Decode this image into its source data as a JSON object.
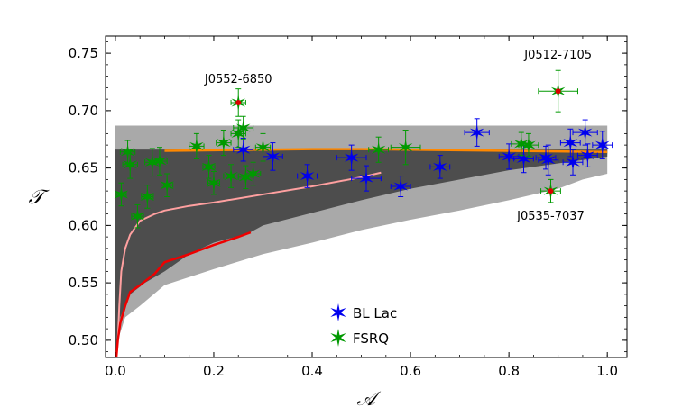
{
  "chart_data": {
    "type": "scatter",
    "title": "",
    "xlabel": "𝒜",
    "ylabel": "𝒯",
    "xlim": [
      -0.02,
      1.04
    ],
    "ylim": [
      0.485,
      0.765
    ],
    "x_ticks": [
      "0.0",
      "0.2",
      "0.4",
      "0.6",
      "0.8",
      "1.0"
    ],
    "x_tick_values": [
      0.0,
      0.2,
      0.4,
      0.6,
      0.8,
      1.0
    ],
    "y_ticks": [
      "0.50",
      "0.55",
      "0.60",
      "0.65",
      "0.70",
      "0.75"
    ],
    "y_tick_values": [
      0.5,
      0.55,
      0.6,
      0.65,
      0.7,
      0.75
    ],
    "grid": false,
    "legend_position": "bottom-center",
    "series": [
      {
        "name": "BL Lac",
        "color": "#0000ee",
        "marker": "star",
        "points": [
          {
            "x": 0.26,
            "y": 0.666,
            "xerr": 0.02,
            "yerr": 0.01
          },
          {
            "x": 0.32,
            "y": 0.66,
            "xerr": 0.02,
            "yerr": 0.012
          },
          {
            "x": 0.39,
            "y": 0.643,
            "xerr": 0.02,
            "yerr": 0.01
          },
          {
            "x": 0.48,
            "y": 0.659,
            "xerr": 0.03,
            "yerr": 0.011
          },
          {
            "x": 0.51,
            "y": 0.641,
            "xerr": 0.03,
            "yerr": 0.011
          },
          {
            "x": 0.58,
            "y": 0.634,
            "xerr": 0.02,
            "yerr": 0.009
          },
          {
            "x": 0.66,
            "y": 0.651,
            "xerr": 0.02,
            "yerr": 0.01
          },
          {
            "x": 0.735,
            "y": 0.681,
            "xerr": 0.025,
            "yerr": 0.012
          },
          {
            "x": 0.8,
            "y": 0.66,
            "xerr": 0.02,
            "yerr": 0.011
          },
          {
            "x": 0.83,
            "y": 0.658,
            "xerr": 0.02,
            "yerr": 0.012
          },
          {
            "x": 0.875,
            "y": 0.659,
            "xerr": 0.02,
            "yerr": 0.01
          },
          {
            "x": 0.88,
            "y": 0.657,
            "xerr": 0.02,
            "yerr": 0.013
          },
          {
            "x": 0.925,
            "y": 0.672,
            "xerr": 0.02,
            "yerr": 0.012
          },
          {
            "x": 0.93,
            "y": 0.655,
            "xerr": 0.02,
            "yerr": 0.011
          },
          {
            "x": 0.955,
            "y": 0.681,
            "xerr": 0.025,
            "yerr": 0.011
          },
          {
            "x": 0.96,
            "y": 0.661,
            "xerr": 0.02,
            "yerr": 0.01
          },
          {
            "x": 0.99,
            "y": 0.67,
            "xerr": 0.02,
            "yerr": 0.012
          }
        ]
      },
      {
        "name": "FSRQ",
        "color": "#009900",
        "marker": "star",
        "points": [
          {
            "x": 0.012,
            "y": 0.627,
            "xerr": 0.01,
            "yerr": 0.01
          },
          {
            "x": 0.025,
            "y": 0.664,
            "xerr": 0.015,
            "yerr": 0.01
          },
          {
            "x": 0.03,
            "y": 0.653,
            "xerr": 0.015,
            "yerr": 0.012
          },
          {
            "x": 0.045,
            "y": 0.608,
            "xerr": 0.012,
            "yerr": 0.01
          },
          {
            "x": 0.065,
            "y": 0.625,
            "xerr": 0.012,
            "yerr": 0.01
          },
          {
            "x": 0.075,
            "y": 0.655,
            "xerr": 0.015,
            "yerr": 0.012
          },
          {
            "x": 0.09,
            "y": 0.656,
            "xerr": 0.015,
            "yerr": 0.012
          },
          {
            "x": 0.105,
            "y": 0.635,
            "xerr": 0.012,
            "yerr": 0.01
          },
          {
            "x": 0.165,
            "y": 0.669,
            "xerr": 0.015,
            "yerr": 0.011
          },
          {
            "x": 0.19,
            "y": 0.651,
            "xerr": 0.012,
            "yerr": 0.01
          },
          {
            "x": 0.2,
            "y": 0.637,
            "xerr": 0.012,
            "yerr": 0.01
          },
          {
            "x": 0.22,
            "y": 0.672,
            "xerr": 0.015,
            "yerr": 0.011
          },
          {
            "x": 0.235,
            "y": 0.643,
            "xerr": 0.015,
            "yerr": 0.01
          },
          {
            "x": 0.25,
            "y": 0.68,
            "xerr": 0.015,
            "yerr": 0.012
          },
          {
            "x": 0.26,
            "y": 0.685,
            "xerr": 0.02,
            "yerr": 0.01
          },
          {
            "x": 0.265,
            "y": 0.642,
            "xerr": 0.015,
            "yerr": 0.01
          },
          {
            "x": 0.28,
            "y": 0.645,
            "xerr": 0.015,
            "yerr": 0.01
          },
          {
            "x": 0.3,
            "y": 0.668,
            "xerr": 0.015,
            "yerr": 0.012
          },
          {
            "x": 0.535,
            "y": 0.666,
            "xerr": 0.02,
            "yerr": 0.011
          },
          {
            "x": 0.59,
            "y": 0.668,
            "xerr": 0.03,
            "yerr": 0.015
          },
          {
            "x": 0.825,
            "y": 0.671,
            "xerr": 0.02,
            "yerr": 0.01
          },
          {
            "x": 0.84,
            "y": 0.67,
            "xerr": 0.02,
            "yerr": 0.01
          }
        ]
      }
    ],
    "special_points": [
      {
        "label": "J0552-6850",
        "x": 0.25,
        "y": 0.707,
        "xerr": 0.015,
        "yerr": 0.012
      },
      {
        "label": "J0512-7105",
        "x": 0.9,
        "y": 0.717,
        "xerr": 0.04,
        "yerr": 0.018
      },
      {
        "label": "J0535-7037",
        "x": 0.885,
        "y": 0.63,
        "xerr": 0.02,
        "yerr": 0.01
      }
    ],
    "special_marker_color": "#dd0000",
    "regions": {
      "light_band": {
        "color": "#a9a9a9",
        "y_top": 0.687,
        "lower_x": [
          0.0,
          0.005,
          0.02,
          0.05,
          0.1,
          0.2,
          0.3,
          0.4,
          0.5,
          0.6,
          0.7,
          0.8,
          0.9,
          0.95,
          1.0
        ],
        "lower_y": [
          0.485,
          0.5,
          0.52,
          0.53,
          0.548,
          0.562,
          0.575,
          0.585,
          0.596,
          0.605,
          0.613,
          0.622,
          0.632,
          0.64,
          0.645
        ]
      },
      "mid_band": {
        "color": "#808080",
        "y_top": 0.667,
        "lower_x": [
          0.0,
          0.002,
          0.01,
          0.03,
          0.06,
          0.1,
          0.2,
          0.3,
          0.4,
          0.5,
          0.6,
          0.7,
          0.8,
          0.9,
          0.95,
          1.0
        ],
        "lower_y": [
          0.485,
          0.525,
          0.55,
          0.568,
          0.578,
          0.585,
          0.598,
          0.608,
          0.617,
          0.626,
          0.635,
          0.643,
          0.65,
          0.657,
          0.66,
          0.662
        ]
      },
      "dark_band": {
        "color": "#4d4d4d",
        "y_top": 0.666,
        "lower_x": [
          0.0,
          0.01,
          0.03,
          0.06,
          0.1,
          0.15,
          0.2,
          0.27,
          0.3,
          0.4,
          0.5,
          0.6,
          0.7,
          0.8,
          0.9,
          0.95,
          1.0
        ],
        "lower_y": [
          0.485,
          0.52,
          0.54,
          0.55,
          0.56,
          0.575,
          0.585,
          0.593,
          0.6,
          0.611,
          0.622,
          0.632,
          0.64,
          0.648,
          0.654,
          0.657,
          0.66
        ]
      }
    },
    "curves": [
      {
        "color": "#ff8800",
        "width": 2.5,
        "x": [
          0.1,
          0.2,
          0.3,
          0.4,
          0.5,
          0.6,
          0.7,
          0.8,
          0.9,
          1.0
        ],
        "y": [
          0.665,
          0.6655,
          0.666,
          0.6665,
          0.6665,
          0.666,
          0.6655,
          0.665,
          0.6645,
          0.664
        ]
      },
      {
        "color": "#ffa0a0",
        "width": 2,
        "x": [
          0.005,
          0.008,
          0.012,
          0.02,
          0.03,
          0.05,
          0.08,
          0.1,
          0.15,
          0.2,
          0.3,
          0.4,
          0.5,
          0.54
        ],
        "y": [
          0.5,
          0.53,
          0.56,
          0.58,
          0.592,
          0.604,
          0.61,
          0.613,
          0.617,
          0.62,
          0.627,
          0.634,
          0.642,
          0.646
        ]
      },
      {
        "color": "#ee0000",
        "width": 2.5,
        "x": [
          0.002,
          0.005,
          0.01,
          0.02,
          0.03,
          0.05,
          0.08,
          0.1,
          0.15,
          0.2,
          0.25,
          0.275
        ],
        "y": [
          0.485,
          0.5,
          0.515,
          0.53,
          0.542,
          0.548,
          0.558,
          0.568,
          0.575,
          0.583,
          0.59,
          0.594
        ]
      }
    ]
  }
}
